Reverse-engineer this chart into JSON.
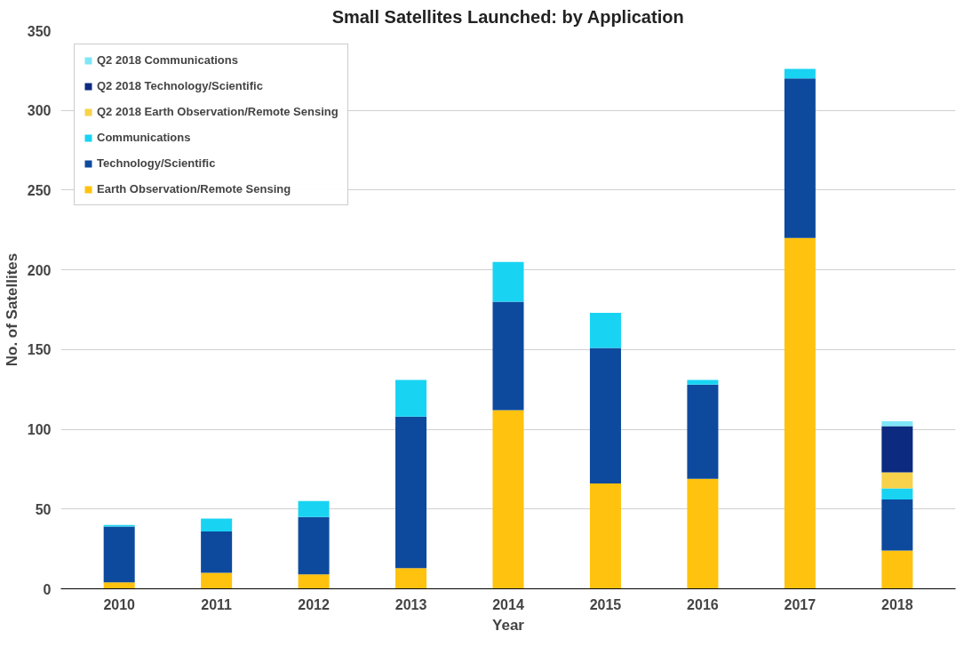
{
  "chart_data": {
    "type": "bar",
    "title": "Small Satellites Launched: by Application",
    "xlabel": "Year",
    "ylabel": "No. of Satellites",
    "categories": [
      "2010",
      "2011",
      "2012",
      "2013",
      "2014",
      "2015",
      "2016",
      "2017",
      "2018"
    ],
    "stacked": true,
    "ylim": [
      0,
      350
    ],
    "yticks": [
      0,
      50,
      100,
      150,
      200,
      250,
      300,
      350
    ],
    "grid": "y",
    "legend": "top left",
    "series": [
      {
        "name": "Earth Observation/Remote Sensing",
        "color": "#ffc20e",
        "values": [
          4,
          10,
          9,
          13,
          112,
          66,
          69,
          220,
          24
        ]
      },
      {
        "name": "Technology/Scientific",
        "color": "#0d4a9e",
        "values": [
          35,
          26,
          36,
          95,
          68,
          85,
          59,
          100,
          32
        ]
      },
      {
        "name": "Communications",
        "color": "#19d3f3",
        "values": [
          1,
          8,
          10,
          23,
          25,
          22,
          3,
          6,
          7
        ]
      },
      {
        "name": "Q2 2018 Earth Observation/Remote Sensing",
        "color": "#f7d24a",
        "values": [
          null,
          null,
          null,
          null,
          null,
          null,
          null,
          null,
          10
        ]
      },
      {
        "name": "Q2 2018 Technology/Scientific",
        "color": "#0b2a80",
        "values": [
          null,
          null,
          null,
          null,
          null,
          null,
          null,
          null,
          29
        ]
      },
      {
        "name": "Q2 2018 Communications",
        "color": "#7fe6f7",
        "values": [
          null,
          null,
          null,
          null,
          null,
          null,
          null,
          null,
          3
        ]
      }
    ]
  }
}
